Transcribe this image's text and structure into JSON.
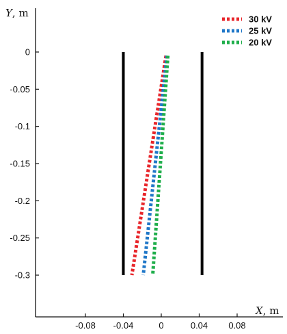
{
  "chart_data": {
    "type": "line",
    "xlabel": {
      "symbol": "X",
      "unit": ", m"
    },
    "ylabel": {
      "symbol": "Y",
      "unit": ", m"
    },
    "xlim": [
      -0.12,
      0.12
    ],
    "ylim": [
      -0.335,
      0.035
    ],
    "x_ticks": [
      {
        "value": -0.08,
        "label": "-0.08"
      },
      {
        "value": -0.04,
        "label": "-0.04"
      },
      {
        "value": 0,
        "label": "0"
      },
      {
        "value": 0.04,
        "label": "0.04"
      },
      {
        "value": 0.08,
        "label": "0.08"
      }
    ],
    "y_ticks": [
      {
        "value": 0,
        "label": "0"
      },
      {
        "value": -0.05,
        "label": "-0.05"
      },
      {
        "value": -0.1,
        "label": "-0.1"
      },
      {
        "value": -0.15,
        "label": "-0.15"
      },
      {
        "value": -0.2,
        "label": "-0.2"
      },
      {
        "value": -0.25,
        "label": "-0.25"
      },
      {
        "value": -0.3,
        "label": "-0.3"
      }
    ],
    "electrodes": [
      {
        "x": -0.04,
        "y": [
          -0.3,
          0
        ]
      },
      {
        "x": 0.043,
        "y": [
          -0.3,
          0
        ]
      }
    ],
    "legend_position": "top-right",
    "series": [
      {
        "name": "30 kV",
        "color": "#e8262b",
        "x": [
          0.005,
          -0.031
        ],
        "y": [
          -0.005,
          -0.3
        ]
      },
      {
        "name": "25 kV",
        "color": "#1f77c8",
        "x": [
          0.006,
          -0.019
        ],
        "y": [
          -0.005,
          -0.3
        ]
      },
      {
        "name": "20 kV",
        "color": "#1fae4b",
        "x": [
          0.007,
          -0.009
        ],
        "y": [
          -0.005,
          -0.3
        ]
      }
    ]
  }
}
